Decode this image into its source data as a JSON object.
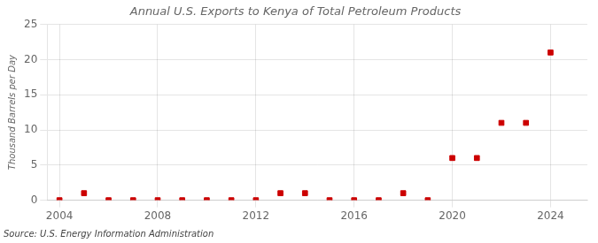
{
  "chart_data": {
    "type": "scatter",
    "title": "Annual U.S. Exports to Kenya of Total Petroleum Products",
    "ylabel": "Thousand Barrels per Day",
    "annotation": "Source: U.S. Energy Information Administration",
    "x": [
      2004,
      2005,
      2006,
      2007,
      2008,
      2009,
      2010,
      2011,
      2012,
      2013,
      2014,
      2015,
      2016,
      2017,
      2018,
      2019,
      2020,
      2021,
      2022,
      2023,
      2024
    ],
    "values": [
      0,
      1,
      0,
      0,
      0,
      0,
      0,
      0,
      0,
      1,
      1,
      0,
      0,
      0,
      1,
      0,
      6,
      6,
      11,
      11,
      21
    ],
    "color": "#cc0000",
    "marker": "square",
    "xlim": [
      2003.5,
      2025.5
    ],
    "ylim": [
      0,
      25
    ],
    "xticks": [
      2004,
      2008,
      2012,
      2016,
      2020,
      2024
    ],
    "yticks": [
      0,
      5,
      10,
      15,
      20,
      25
    ],
    "grid": true
  }
}
